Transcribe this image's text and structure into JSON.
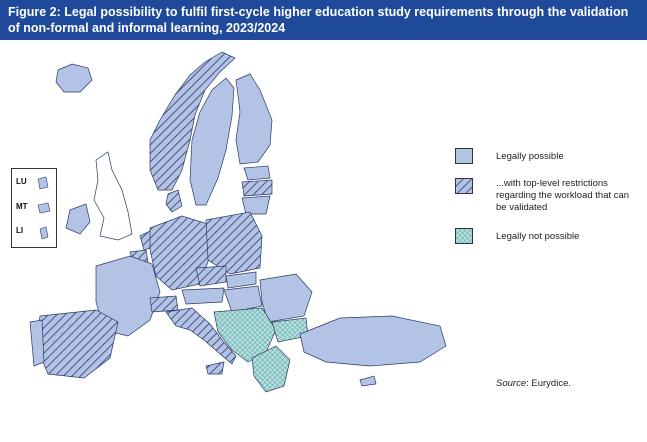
{
  "title": "Figure 2: Legal possibility to fulfil first-cycle higher education study requirements through the validation of non-formal and informal learning, 2023/2024",
  "legend": [
    {
      "key": "possible",
      "label": "Legally possible",
      "pattern": "solid",
      "color": "#b3c3e6"
    },
    {
      "key": "restricted",
      "label": "...with top-level restrictions regarding the workload that can be validated",
      "pattern": "hatch",
      "color": "#b3c3e6"
    },
    {
      "key": "not_possible",
      "label": "Legally not possible",
      "pattern": "dots",
      "color": "#b7e2e2"
    }
  ],
  "inset_labels": [
    "LU",
    "MT",
    "LI"
  ],
  "source": {
    "prefix": "Source",
    "text": ": Eurydice."
  },
  "colors": {
    "header": "#1f4a9c",
    "possible": "#b3c3e6",
    "not_possible": "#b7e2e2",
    "no_data": "#ffffff",
    "border": "#2a3a66"
  }
}
